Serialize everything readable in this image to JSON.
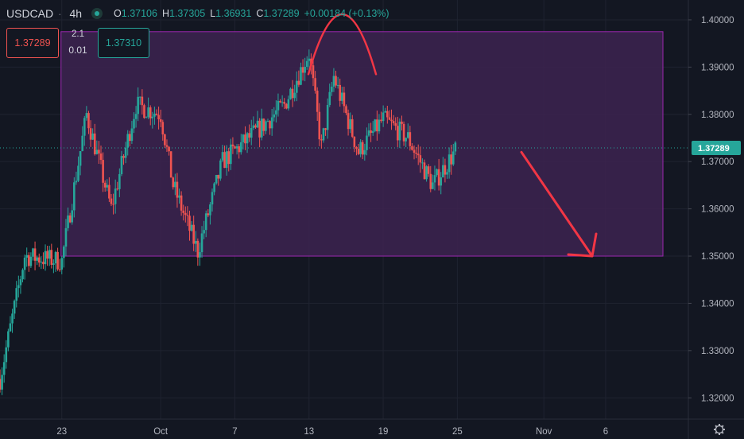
{
  "header": {
    "symbol": "USDCAD",
    "timeframe": "4h",
    "open_label": "O",
    "open": "1.37106",
    "high_label": "H",
    "high": "1.37305",
    "low_label": "L",
    "low": "1.36931",
    "close_label": "C",
    "close": "1.37289",
    "change": "+0.00184 (+0.13%)",
    "status_color": "#26a69a"
  },
  "trade": {
    "sell_price": "1.37289",
    "buy_price": "1.37310",
    "spread_top": "2.1",
    "spread_bottom": "0.01"
  },
  "colors": {
    "background": "#131722",
    "up": "#26a69a",
    "down": "#ef5350",
    "range_fill": "#3d2350",
    "range_border": "#9c27b0",
    "annotation": "#f23645"
  },
  "axis_icon": "settings-gear-icon",
  "chart_data": {
    "type": "candlestick",
    "title": "",
    "xlabel": "",
    "ylabel": "",
    "ylim": [
      1.3155,
      1.4042
    ],
    "yticks": [
      "1.40000",
      "1.39000",
      "1.38000",
      "1.37000",
      "1.36000",
      "1.35000",
      "1.34000",
      "1.33000",
      "1.32000"
    ],
    "xticks": [
      "23",
      "Oct",
      "7",
      "13",
      "19",
      "25",
      "Nov",
      "6"
    ],
    "last_price_label": "1.37289",
    "range_box": {
      "y_top": 1.3975,
      "y_bottom": 1.35
    },
    "annotations": [
      "double-top arc",
      "downward arrow"
    ],
    "grid": true,
    "key_points": [
      {
        "date": "Sep 18",
        "price": 1.324
      },
      {
        "date": "Sep 20",
        "price": 1.35
      },
      {
        "date": "Sep 23",
        "price": 1.349
      },
      {
        "date": "Sep 25",
        "price": 1.38
      },
      {
        "date": "Sep 27",
        "price": 1.36
      },
      {
        "date": "Sep 29",
        "price": 1.382
      },
      {
        "date": "Oct 1",
        "price": 1.38
      },
      {
        "date": "Oct 2",
        "price": 1.365
      },
      {
        "date": "Oct 4",
        "price": 1.351
      },
      {
        "date": "Oct 6",
        "price": 1.37
      },
      {
        "date": "Oct 9",
        "price": 1.377
      },
      {
        "date": "Oct 11",
        "price": 1.382
      },
      {
        "date": "Oct 13",
        "price": 1.393
      },
      {
        "date": "Oct 14",
        "price": 1.373
      },
      {
        "date": "Oct 15",
        "price": 1.388
      },
      {
        "date": "Oct 17",
        "price": 1.372
      },
      {
        "date": "Oct 19",
        "price": 1.379
      },
      {
        "date": "Oct 21",
        "price": 1.375
      },
      {
        "date": "Oct 23",
        "price": 1.365
      },
      {
        "date": "Oct 25",
        "price": 1.3729
      }
    ]
  }
}
